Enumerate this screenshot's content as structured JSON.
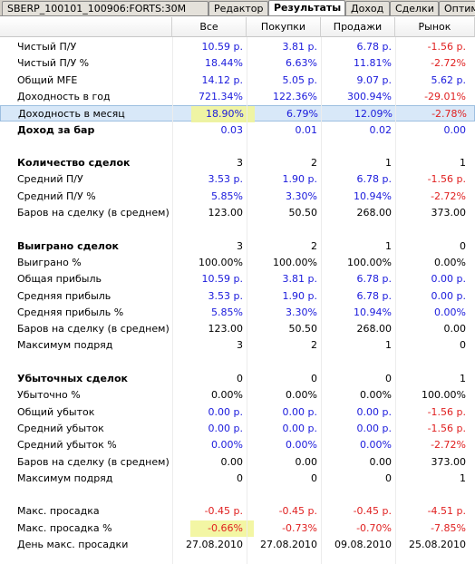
{
  "tabs": [
    {
      "label": "SBERP_100101_100906:FORTS:30M",
      "active": false
    },
    {
      "label": "Редактор",
      "active": false
    },
    {
      "label": "Результаты",
      "active": true
    },
    {
      "label": "Доход",
      "active": false
    },
    {
      "label": "Сделки",
      "active": false
    },
    {
      "label": "Оптим",
      "active": false
    }
  ],
  "columns": [
    "",
    "Все",
    "Покупки",
    "Продажи",
    "Рынок"
  ],
  "colors": {
    "positive": "#1a1adc",
    "negative": "#e02020",
    "neutral": "#000000",
    "highlight": "#f2f59a",
    "selected": "#d8e8f8"
  },
  "rows": [
    {
      "label": "Чистый П/У",
      "bold": false,
      "values": [
        "10.59 р.",
        "3.81 р.",
        "6.78 р.",
        "-1.56 р."
      ],
      "tones": [
        "pos",
        "pos",
        "pos",
        "neg"
      ]
    },
    {
      "label": "Чистый П/У %",
      "bold": false,
      "values": [
        "18.44%",
        "6.63%",
        "11.81%",
        "-2.72%"
      ],
      "tones": [
        "pos",
        "pos",
        "pos",
        "neg"
      ]
    },
    {
      "label": "Общий MFE",
      "bold": false,
      "values": [
        "14.12 р.",
        "5.05 р.",
        "9.07 р.",
        "5.62 р."
      ],
      "tones": [
        "pos",
        "pos",
        "pos",
        "pos"
      ]
    },
    {
      "label": "Доходность в год",
      "bold": false,
      "values": [
        "721.34%",
        "122.36%",
        "300.94%",
        "-29.01%"
      ],
      "tones": [
        "pos",
        "pos",
        "pos",
        "neg"
      ]
    },
    {
      "label": "Доходность в месяц",
      "bold": false,
      "selected": true,
      "values": [
        "18.90%",
        "6.79%",
        "12.09%",
        "-2.78%"
      ],
      "tones": [
        "pos",
        "pos",
        "pos",
        "neg"
      ]
    },
    {
      "label": "Доход за бар",
      "bold": true,
      "values": [
        "0.03",
        "0.01",
        "0.02",
        "0.00"
      ],
      "tones": [
        "pos",
        "pos",
        "pos",
        "pos"
      ]
    },
    {
      "label": "",
      "bold": false,
      "values": [
        "",
        "",
        "",
        ""
      ],
      "tones": [
        "neu",
        "neu",
        "neu",
        "neu"
      ]
    },
    {
      "label": "Количество сделок",
      "bold": true,
      "values": [
        "3",
        "2",
        "1",
        "1"
      ],
      "tones": [
        "neu",
        "neu",
        "neu",
        "neu"
      ]
    },
    {
      "label": "Средний П/У",
      "bold": false,
      "values": [
        "3.53 р.",
        "1.90 р.",
        "6.78 р.",
        "-1.56 р."
      ],
      "tones": [
        "pos",
        "pos",
        "pos",
        "neg"
      ]
    },
    {
      "label": "Средний П/У %",
      "bold": false,
      "values": [
        "5.85%",
        "3.30%",
        "10.94%",
        "-2.72%"
      ],
      "tones": [
        "pos",
        "pos",
        "pos",
        "neg"
      ]
    },
    {
      "label": "Баров на сделку (в среднем)",
      "bold": false,
      "values": [
        "123.00",
        "50.50",
        "268.00",
        "373.00"
      ],
      "tones": [
        "neu",
        "neu",
        "neu",
        "neu"
      ]
    },
    {
      "label": "",
      "bold": false,
      "values": [
        "",
        "",
        "",
        ""
      ],
      "tones": [
        "neu",
        "neu",
        "neu",
        "neu"
      ]
    },
    {
      "label": "Выиграно сделок",
      "bold": true,
      "values": [
        "3",
        "2",
        "1",
        "0"
      ],
      "tones": [
        "neu",
        "neu",
        "neu",
        "neu"
      ]
    },
    {
      "label": "Выиграно %",
      "bold": false,
      "values": [
        "100.00%",
        "100.00%",
        "100.00%",
        "0.00%"
      ],
      "tones": [
        "neu",
        "neu",
        "neu",
        "neu"
      ]
    },
    {
      "label": "Общая прибыль",
      "bold": false,
      "values": [
        "10.59 р.",
        "3.81 р.",
        "6.78 р.",
        "0.00 р."
      ],
      "tones": [
        "pos",
        "pos",
        "pos",
        "pos"
      ]
    },
    {
      "label": "Средняя прибыль",
      "bold": false,
      "values": [
        "3.53 р.",
        "1.90 р.",
        "6.78 р.",
        "0.00 р."
      ],
      "tones": [
        "pos",
        "pos",
        "pos",
        "pos"
      ]
    },
    {
      "label": "Средняя прибыль %",
      "bold": false,
      "values": [
        "5.85%",
        "3.30%",
        "10.94%",
        "0.00%"
      ],
      "tones": [
        "pos",
        "pos",
        "pos",
        "pos"
      ]
    },
    {
      "label": "Баров на сделку (в среднем)",
      "bold": false,
      "values": [
        "123.00",
        "50.50",
        "268.00",
        "0.00"
      ],
      "tones": [
        "neu",
        "neu",
        "neu",
        "neu"
      ]
    },
    {
      "label": "Максимум подряд",
      "bold": false,
      "values": [
        "3",
        "2",
        "1",
        "0"
      ],
      "tones": [
        "neu",
        "neu",
        "neu",
        "neu"
      ]
    },
    {
      "label": "",
      "bold": false,
      "values": [
        "",
        "",
        "",
        ""
      ],
      "tones": [
        "neu",
        "neu",
        "neu",
        "neu"
      ]
    },
    {
      "label": "Убыточных сделок",
      "bold": true,
      "values": [
        "0",
        "0",
        "0",
        "1"
      ],
      "tones": [
        "neu",
        "neu",
        "neu",
        "neu"
      ]
    },
    {
      "label": "Убыточно %",
      "bold": false,
      "values": [
        "0.00%",
        "0.00%",
        "0.00%",
        "100.00%"
      ],
      "tones": [
        "neu",
        "neu",
        "neu",
        "neu"
      ]
    },
    {
      "label": "Общий убыток",
      "bold": false,
      "values": [
        "0.00 р.",
        "0.00 р.",
        "0.00 р.",
        "-1.56 р."
      ],
      "tones": [
        "pos",
        "pos",
        "pos",
        "neg"
      ]
    },
    {
      "label": "Средний убыток",
      "bold": false,
      "values": [
        "0.00 р.",
        "0.00 р.",
        "0.00 р.",
        "-1.56 р."
      ],
      "tones": [
        "pos",
        "pos",
        "pos",
        "neg"
      ]
    },
    {
      "label": "Средний убыток %",
      "bold": false,
      "values": [
        "0.00%",
        "0.00%",
        "0.00%",
        "-2.72%"
      ],
      "tones": [
        "pos",
        "pos",
        "pos",
        "neg"
      ]
    },
    {
      "label": "Баров на сделку (в среднем)",
      "bold": false,
      "values": [
        "0.00",
        "0.00",
        "0.00",
        "373.00"
      ],
      "tones": [
        "neu",
        "neu",
        "neu",
        "neu"
      ]
    },
    {
      "label": "Максимум подряд",
      "bold": false,
      "values": [
        "0",
        "0",
        "0",
        "1"
      ],
      "tones": [
        "neu",
        "neu",
        "neu",
        "neu"
      ]
    },
    {
      "label": "",
      "bold": false,
      "values": [
        "",
        "",
        "",
        ""
      ],
      "tones": [
        "neu",
        "neu",
        "neu",
        "neu"
      ]
    },
    {
      "label": "Макс. просадка",
      "bold": false,
      "values": [
        "-0.45 р.",
        "-0.45 р.",
        "-0.45 р.",
        "-4.51 р."
      ],
      "tones": [
        "neg",
        "neg",
        "neg",
        "neg"
      ]
    },
    {
      "label": "Макс. просадка %",
      "bold": false,
      "values": [
        "-0.66%",
        "-0.73%",
        "-0.70%",
        "-7.85%"
      ],
      "tones": [
        "neg",
        "neg",
        "neg",
        "neg"
      ]
    },
    {
      "label": "День макс. просадки",
      "bold": false,
      "values": [
        "27.08.2010",
        "27.08.2010",
        "09.08.2010",
        "25.08.2010"
      ],
      "tones": [
        "neu",
        "neu",
        "neu",
        "neu"
      ]
    }
  ]
}
